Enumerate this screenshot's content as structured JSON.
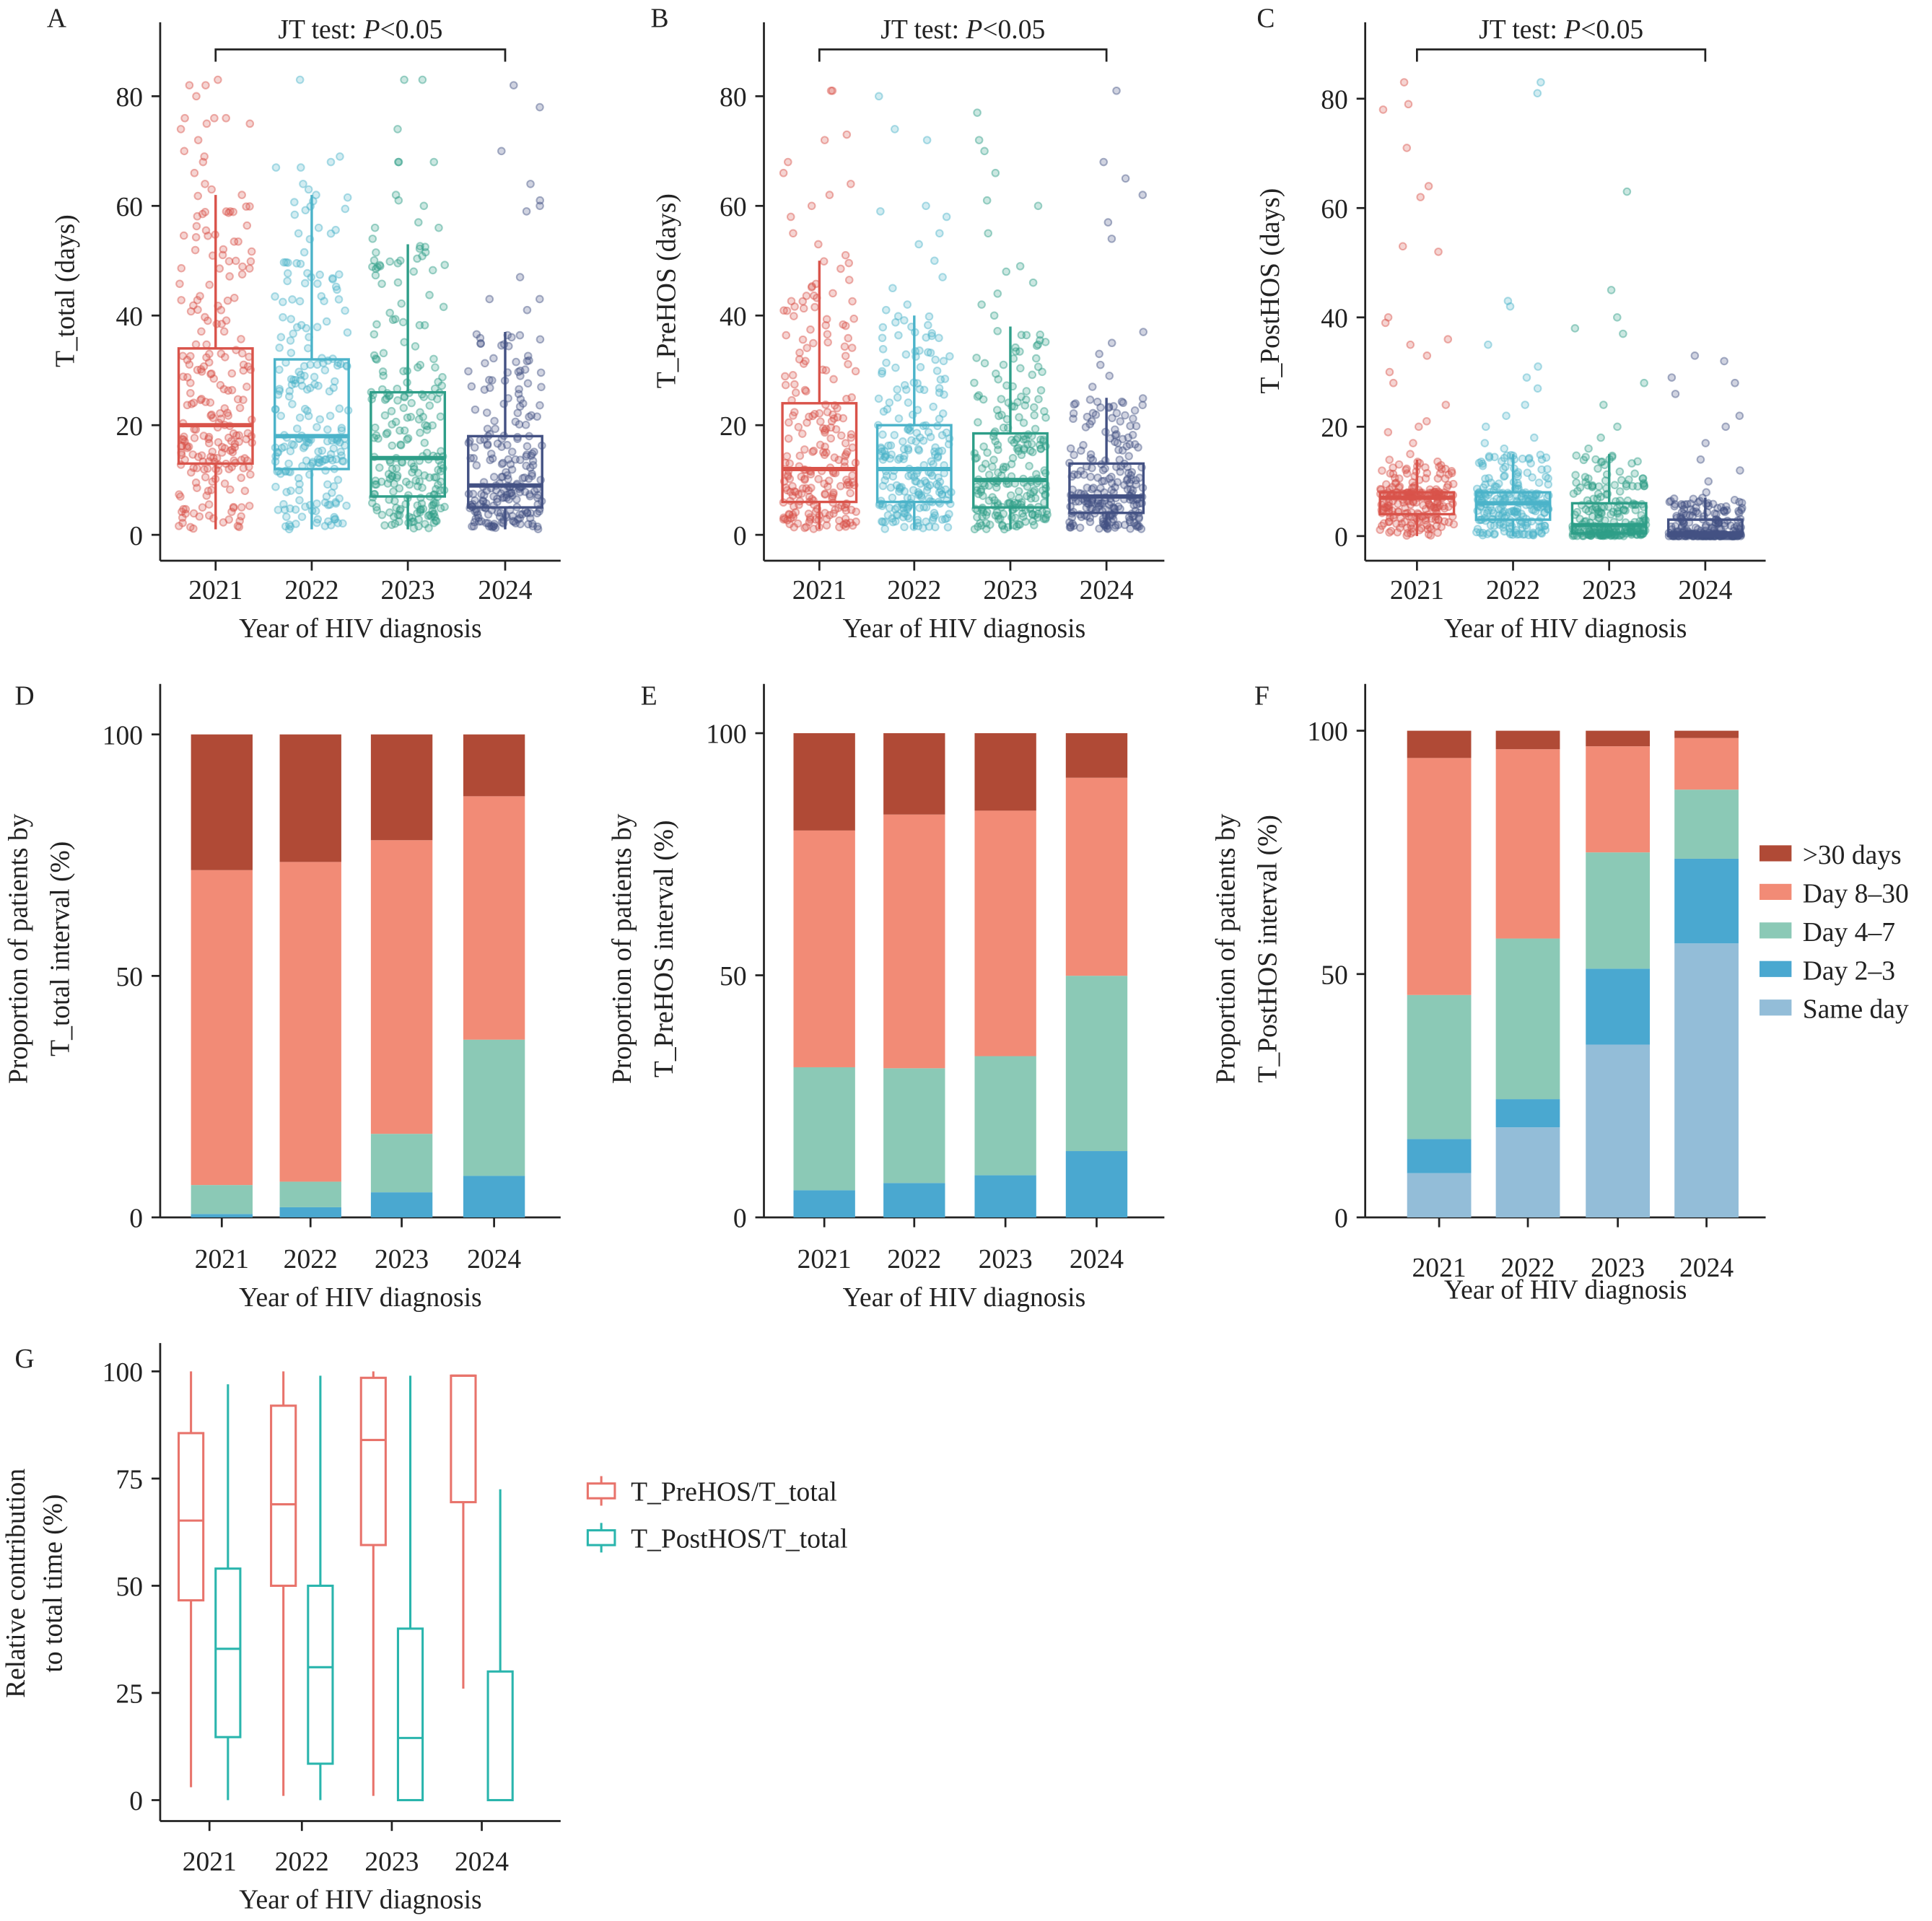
{
  "colors": {
    "years": {
      "2021": "#d9534a",
      "2022": "#4bb3c9",
      "2023": "#2e9e88",
      "2024": "#435183"
    },
    "intervals": {
      ">30 days": "#b04a36",
      "Day 8–30": "#f28b76",
      "Day 4–7": "#8bc9b6",
      "Day 2–3": "#4aa8d0",
      "Same day": "#93bdd8"
    },
    "ratios": {
      "T_PreHOS/T_total": "#e8736b",
      "T_PostHOS/T_total": "#2ab5ad"
    }
  },
  "chart_data": [
    {
      "panel": "A",
      "type": "box-jitter",
      "annotation": "JT test: P<0.05",
      "annotation_prefix": "JT test: ",
      "annotation_p": "P",
      "annotation_suffix": "<0.05",
      "xlabel": "Year of  HIV diagnosis",
      "ylabel": "T_total (days)",
      "categories": [
        "2021",
        "2022",
        "2023",
        "2024"
      ],
      "yticks": [
        0,
        20,
        40,
        60,
        80
      ],
      "ylim": [
        0,
        90
      ],
      "boxes": [
        {
          "q1": 13,
          "median": 20,
          "q3": 34,
          "whisker_low": 1,
          "whisker_high": 62,
          "outliers": [
            62,
            63,
            64,
            66,
            68,
            69,
            70,
            72,
            74,
            75,
            75,
            76,
            76,
            76,
            80,
            82,
            82,
            83
          ]
        },
        {
          "q1": 12,
          "median": 18,
          "q3": 32,
          "whisker_low": 1,
          "whisker_high": 62,
          "outliers": [
            62,
            63,
            64,
            67,
            67,
            68,
            69,
            83
          ]
        },
        {
          "q1": 7,
          "median": 14,
          "q3": 26,
          "whisker_low": 1,
          "whisker_high": 53,
          "outliers": [
            54,
            56,
            56,
            57,
            60,
            61,
            62,
            68,
            68,
            68,
            74,
            83,
            83
          ]
        },
        {
          "q1": 5,
          "median": 9,
          "q3": 18,
          "whisker_low": 1,
          "whisker_high": 37,
          "outliers": [
            41,
            43,
            43,
            47,
            59,
            60,
            61,
            64,
            70,
            78,
            82
          ]
        }
      ]
    },
    {
      "panel": "B",
      "type": "box-jitter",
      "annotation": "JT test: P<0.05",
      "annotation_prefix": "JT test: ",
      "annotation_p": "P",
      "annotation_suffix": "<0.05",
      "xlabel": "Year of  HIV diagnosis",
      "ylabel": "T_PreHOS  (days)",
      "categories": [
        "2021",
        "2022",
        "2023",
        "2024"
      ],
      "yticks": [
        0,
        20,
        40,
        60,
        80
      ],
      "ylim": [
        0,
        90
      ],
      "boxes": [
        {
          "q1": 6,
          "median": 12,
          "q3": 24,
          "whisker_low": 1,
          "whisker_high": 50,
          "outliers": [
            51,
            53,
            55,
            58,
            60,
            62,
            64,
            66,
            68,
            72,
            73,
            81,
            81
          ]
        },
        {
          "q1": 6,
          "median": 12,
          "q3": 20,
          "whisker_low": 1,
          "whisker_high": 40,
          "outliers": [
            41,
            42,
            45,
            47,
            50,
            53,
            55,
            58,
            59,
            60,
            72,
            74,
            80
          ]
        },
        {
          "q1": 5,
          "median": 10,
          "q3": 18.5,
          "whisker_low": 1,
          "whisker_high": 38,
          "outliers": [
            40,
            42,
            44,
            46,
            48,
            49,
            55,
            60,
            61,
            66,
            70,
            72,
            77
          ]
        },
        {
          "q1": 4,
          "median": 7,
          "q3": 13,
          "whisker_low": 1,
          "whisker_high": 25,
          "outliers": [
            27,
            29,
            31,
            33,
            35,
            37,
            54,
            57,
            62,
            65,
            68,
            81
          ]
        }
      ]
    },
    {
      "panel": "C",
      "type": "box-jitter",
      "annotation": "JT test: P<0.05",
      "annotation_prefix": "JT test: ",
      "annotation_p": "P",
      "annotation_suffix": "<0.05",
      "xlabel": "Year of  HIV diagnosis",
      "ylabel": "T_PostHOS (days)",
      "categories": [
        "2021",
        "2022",
        "2023",
        "2024"
      ],
      "yticks": [
        0,
        20,
        40,
        60,
        80
      ],
      "ylim": [
        0,
        90
      ],
      "boxes": [
        {
          "q1": 4,
          "median": 7,
          "q3": 8,
          "whisker_low": 0,
          "whisker_high": 14,
          "outliers": [
            15,
            17,
            19,
            20,
            21,
            24,
            28,
            30,
            33,
            35,
            36,
            39,
            40,
            52,
            53,
            62,
            64,
            71,
            78,
            79,
            83
          ]
        },
        {
          "q1": 3,
          "median": 6,
          "q3": 8,
          "whisker_low": 0,
          "whisker_high": 15,
          "outliers": [
            16,
            17,
            18,
            20,
            22,
            24,
            27,
            29,
            31,
            35,
            42,
            43,
            81,
            83
          ]
        },
        {
          "q1": 0.5,
          "median": 2,
          "q3": 6,
          "whisker_low": 0,
          "whisker_high": 15,
          "outliers": [
            16,
            18,
            20,
            24,
            28,
            37,
            38,
            40,
            45,
            63
          ]
        },
        {
          "q1": 0,
          "median": 0.5,
          "q3": 3,
          "whisker_low": 0,
          "whisker_high": 7,
          "outliers": [
            8,
            10,
            12,
            14,
            17,
            20,
            22,
            26,
            28,
            29,
            32,
            33
          ]
        }
      ]
    },
    {
      "panel": "D",
      "type": "bar",
      "stacked": true,
      "xlabel": "Year of  HIV diagnosis",
      "ylabel": [
        "Proportion of patients by",
        "T_total interval (%)"
      ],
      "categories": [
        "2021",
        "2022",
        "2023",
        "2024"
      ],
      "yticks": [
        0,
        50,
        100
      ],
      "ylim": [
        0,
        110
      ],
      "series": [
        {
          "name": "Day 2–3",
          "values": [
            0.7,
            2.1,
            5.2,
            8.6
          ]
        },
        {
          "name": "Day 4–7",
          "values": [
            6.0,
            5.3,
            12.1,
            28.2
          ]
        },
        {
          "name": "Day 8–30",
          "values": [
            65.2,
            66.2,
            60.8,
            50.4
          ]
        },
        {
          "name": ">30 days",
          "values": [
            28.1,
            26.4,
            21.9,
            12.8
          ]
        }
      ]
    },
    {
      "panel": "E",
      "type": "bar",
      "stacked": true,
      "xlabel": "Year of  HIV diagnosis",
      "ylabel": [
        "Proportion of patients by",
        "T_PreHOS interval (%)"
      ],
      "categories": [
        "2021",
        "2022",
        "2023",
        "2024"
      ],
      "yticks": [
        0,
        50,
        100
      ],
      "ylim": [
        0,
        110
      ],
      "series": [
        {
          "name": "Day 2–3",
          "values": [
            5.6,
            7.1,
            8.7,
            13.7
          ]
        },
        {
          "name": "Day 4–7",
          "values": [
            25.4,
            23.7,
            24.6,
            36.2
          ]
        },
        {
          "name": "Day 8–30",
          "values": [
            48.9,
            52.4,
            50.7,
            40.9
          ]
        },
        {
          "name": ">30 days",
          "values": [
            20.1,
            16.8,
            16.0,
            9.2
          ]
        }
      ]
    },
    {
      "panel": "F",
      "type": "bar",
      "stacked": true,
      "xlabel": "Year of  HIV diagnosis",
      "ylabel": [
        "Proportion of patients by",
        "T_PostHOS interval (%)"
      ],
      "categories": [
        "2021",
        "2022",
        "2023",
        "2024"
      ],
      "yticks": [
        0,
        50,
        100
      ],
      "ylim": [
        0,
        110
      ],
      "legend_position": "right",
      "legend": [
        ">30 days",
        "Day 8–30",
        "Day 4–7",
        "Day 2–3",
        "Same day"
      ],
      "series": [
        {
          "name": "Same day",
          "values": [
            9.1,
            18.5,
            35.5,
            56.3
          ]
        },
        {
          "name": "Day 2–3",
          "values": [
            7.0,
            5.8,
            15.6,
            17.4
          ]
        },
        {
          "name": "Day 4–7",
          "values": [
            29.6,
            33.0,
            23.9,
            14.2
          ]
        },
        {
          "name": "Day 8–30",
          "values": [
            48.7,
            38.9,
            21.8,
            10.6
          ]
        },
        {
          "name": ">30 days",
          "values": [
            5.6,
            3.8,
            3.2,
            1.5
          ]
        }
      ]
    },
    {
      "panel": "G",
      "type": "box",
      "xlabel": "Year of  HIV diagnosis",
      "ylabel": [
        "Relative contribution",
        "to total time (%)"
      ],
      "categories": [
        "2021",
        "2022",
        "2023",
        "2024"
      ],
      "yticks": [
        0,
        25,
        50,
        75,
        100
      ],
      "ylim": [
        0,
        105
      ],
      "legend_position": "right",
      "series": [
        {
          "name": "T_PreHOS/T_total",
          "boxes": [
            {
              "q1": 46.6,
              "median": 65.2,
              "q3": 85.6,
              "whisker_low": 3,
              "whisker_high": 100
            },
            {
              "q1": 50,
              "median": 69,
              "q3": 92,
              "whisker_low": 1,
              "whisker_high": 100
            },
            {
              "q1": 59.5,
              "median": 84,
              "q3": 98.5,
              "whisker_low": 1,
              "whisker_high": 100
            },
            {
              "q1": 69.5,
              "median": 99,
              "q3": 99,
              "whisker_low": 26,
              "whisker_high": 99
            }
          ]
        },
        {
          "name": "T_PostHOS/T_total",
          "boxes": [
            {
              "q1": 14.7,
              "median": 35.3,
              "q3": 54,
              "whisker_low": 0,
              "whisker_high": 97
            },
            {
              "q1": 8.5,
              "median": 31,
              "q3": 50,
              "whisker_low": 0,
              "whisker_high": 99
            },
            {
              "q1": 0,
              "median": 14.5,
              "q3": 40,
              "whisker_low": 0,
              "whisker_high": 99
            },
            {
              "q1": 0,
              "median": 0,
              "q3": 30,
              "whisker_low": 0,
              "whisker_high": 72.5
            }
          ]
        }
      ]
    }
  ]
}
